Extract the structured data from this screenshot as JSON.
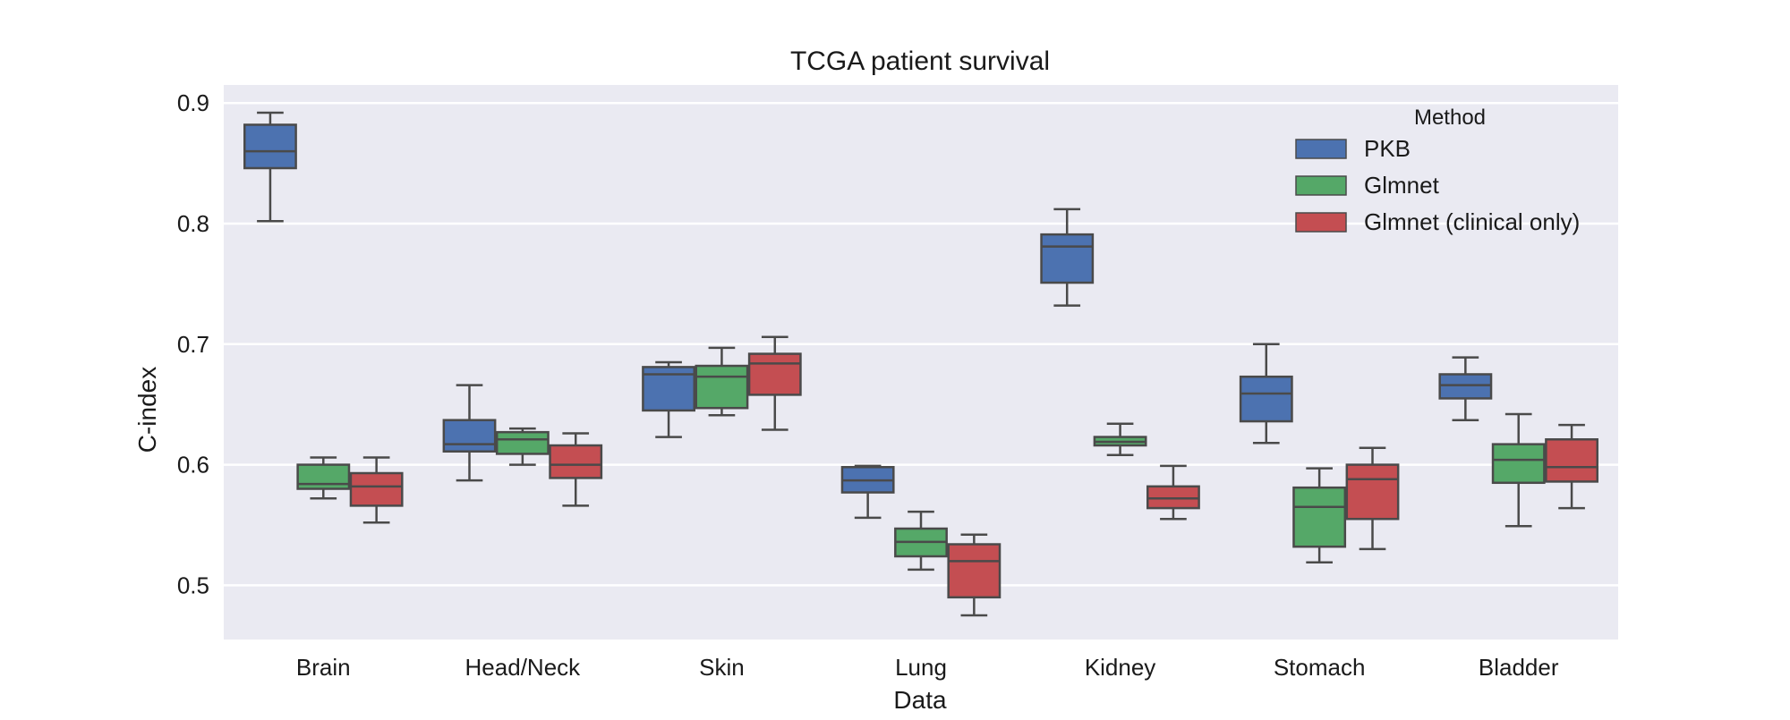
{
  "chart_data": {
    "type": "box",
    "title": "TCGA patient survival",
    "xlabel": "Data",
    "ylabel": "C-index",
    "ylim": [
      0.455,
      0.915
    ],
    "yticks": [
      0.5,
      0.6,
      0.7,
      0.8,
      0.9
    ],
    "ytick_labels": [
      "0.5",
      "0.6",
      "0.7",
      "0.8",
      "0.9"
    ],
    "grid": true,
    "legend": {
      "title": "Method",
      "position": "top-right"
    },
    "categories": [
      "Brain",
      "Head/Neck",
      "Skin",
      "Lung",
      "Kidney",
      "Stomach",
      "Bladder"
    ],
    "series": [
      {
        "name": "PKB",
        "color": "#4c72b0",
        "boxes": [
          {
            "category": "Brain",
            "whisker_low": 0.802,
            "q1": 0.846,
            "median": 0.86,
            "q3": 0.882,
            "whisker_high": 0.892
          },
          {
            "category": "Head/Neck",
            "whisker_low": 0.587,
            "q1": 0.611,
            "median": 0.617,
            "q3": 0.637,
            "whisker_high": 0.666
          },
          {
            "category": "Skin",
            "whisker_low": 0.623,
            "q1": 0.645,
            "median": 0.675,
            "q3": 0.681,
            "whisker_high": 0.685
          },
          {
            "category": "Lung",
            "whisker_low": 0.556,
            "q1": 0.577,
            "median": 0.587,
            "q3": 0.598,
            "whisker_high": 0.599
          },
          {
            "category": "Kidney",
            "whisker_low": 0.732,
            "q1": 0.751,
            "median": 0.781,
            "q3": 0.791,
            "whisker_high": 0.812
          },
          {
            "category": "Stomach",
            "whisker_low": 0.618,
            "q1": 0.636,
            "median": 0.659,
            "q3": 0.673,
            "whisker_high": 0.7
          },
          {
            "category": "Bladder",
            "whisker_low": 0.637,
            "q1": 0.655,
            "median": 0.666,
            "q3": 0.675,
            "whisker_high": 0.689
          }
        ]
      },
      {
        "name": "Glmnet",
        "color": "#55a868",
        "boxes": [
          {
            "category": "Brain",
            "whisker_low": 0.572,
            "q1": 0.58,
            "median": 0.584,
            "q3": 0.6,
            "whisker_high": 0.606
          },
          {
            "category": "Head/Neck",
            "whisker_low": 0.6,
            "q1": 0.609,
            "median": 0.621,
            "q3": 0.627,
            "whisker_high": 0.63
          },
          {
            "category": "Skin",
            "whisker_low": 0.641,
            "q1": 0.647,
            "median": 0.673,
            "q3": 0.682,
            "whisker_high": 0.697
          },
          {
            "category": "Lung",
            "whisker_low": 0.513,
            "q1": 0.524,
            "median": 0.536,
            "q3": 0.547,
            "whisker_high": 0.561
          },
          {
            "category": "Kidney",
            "whisker_low": 0.608,
            "q1": 0.616,
            "median": 0.619,
            "q3": 0.623,
            "whisker_high": 0.634
          },
          {
            "category": "Stomach",
            "whisker_low": 0.519,
            "q1": 0.532,
            "median": 0.565,
            "q3": 0.581,
            "whisker_high": 0.597
          },
          {
            "category": "Bladder",
            "whisker_low": 0.549,
            "q1": 0.585,
            "median": 0.604,
            "q3": 0.617,
            "whisker_high": 0.642
          }
        ]
      },
      {
        "name": "Glmnet (clinical only)",
        "color": "#c44e52",
        "boxes": [
          {
            "category": "Brain",
            "whisker_low": 0.552,
            "q1": 0.566,
            "median": 0.582,
            "q3": 0.593,
            "whisker_high": 0.606
          },
          {
            "category": "Head/Neck",
            "whisker_low": 0.566,
            "q1": 0.589,
            "median": 0.6,
            "q3": 0.616,
            "whisker_high": 0.626
          },
          {
            "category": "Skin",
            "whisker_low": 0.629,
            "q1": 0.658,
            "median": 0.684,
            "q3": 0.692,
            "whisker_high": 0.706
          },
          {
            "category": "Lung",
            "whisker_low": 0.475,
            "q1": 0.49,
            "median": 0.52,
            "q3": 0.534,
            "whisker_high": 0.542
          },
          {
            "category": "Kidney",
            "whisker_low": 0.555,
            "q1": 0.564,
            "median": 0.572,
            "q3": 0.582,
            "whisker_high": 0.599
          },
          {
            "category": "Stomach",
            "whisker_low": 0.53,
            "q1": 0.555,
            "median": 0.588,
            "q3": 0.6,
            "whisker_high": 0.614
          },
          {
            "category": "Bladder",
            "whisker_low": 0.564,
            "q1": 0.586,
            "median": 0.598,
            "q3": 0.621,
            "whisker_high": 0.633
          }
        ]
      }
    ]
  }
}
